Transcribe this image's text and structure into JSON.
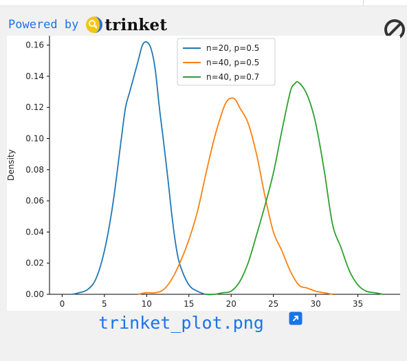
{
  "header": {
    "powered_label": "Powered by",
    "brand": "trinket"
  },
  "colors": {
    "link": "#1a73e8",
    "series_blue": "#1f77b4",
    "series_orange": "#ff7f0e",
    "series_green": "#2ca02c"
  },
  "caption": {
    "filename": "trinket_plot.png"
  },
  "chart_data": {
    "type": "line",
    "title": "",
    "xlabel": "",
    "ylabel": "Density",
    "xlim": [
      -1.5,
      40
    ],
    "ylim": [
      0,
      0.166
    ],
    "xticks": [
      0,
      5,
      10,
      15,
      20,
      25,
      30,
      35
    ],
    "yticks": [
      0.0,
      0.02,
      0.04,
      0.06,
      0.08,
      0.1,
      0.12,
      0.14,
      0.16
    ],
    "ytick_labels": [
      "0.00",
      "0.02",
      "0.04",
      "0.06",
      "0.08",
      "0.10",
      "0.12",
      "0.14",
      "0.16"
    ],
    "legend_position": "top-center",
    "series": [
      {
        "name": "n=20, p=0.5",
        "color": "#1f77b4",
        "x": [
          1.2,
          2,
          3,
          4,
          5,
          6,
          7,
          7.5,
          8,
          8.5,
          9,
          9.5,
          10,
          10.5,
          11,
          11.5,
          12,
          12.5,
          13,
          13.5,
          14,
          15,
          16,
          17,
          18
        ],
        "y": [
          0.0,
          0.001,
          0.003,
          0.01,
          0.028,
          0.058,
          0.1,
          0.12,
          0.13,
          0.14,
          0.15,
          0.16,
          0.162,
          0.158,
          0.145,
          0.12,
          0.098,
          0.075,
          0.05,
          0.03,
          0.018,
          0.006,
          0.002,
          0.0,
          0.0
        ]
      },
      {
        "name": "n=40, p=0.5",
        "color": "#ff7f0e",
        "x": [
          9,
          10,
          11,
          12,
          13,
          14,
          15,
          16,
          17,
          18,
          19,
          19.5,
          20,
          20.5,
          21,
          22,
          23,
          24,
          25,
          26,
          27,
          28,
          29,
          30,
          31,
          32
        ],
        "y": [
          0.0,
          0.001,
          0.001,
          0.003,
          0.01,
          0.021,
          0.035,
          0.053,
          0.077,
          0.1,
          0.118,
          0.124,
          0.126,
          0.125,
          0.12,
          0.11,
          0.09,
          0.063,
          0.04,
          0.028,
          0.015,
          0.006,
          0.004,
          0.002,
          0.001,
          0.0
        ]
      },
      {
        "name": "n=40, p=0.7",
        "color": "#2ca02c",
        "x": [
          17,
          18,
          19,
          20,
          21,
          22,
          23,
          24,
          25,
          26,
          27,
          27.5,
          28,
          29,
          30,
          31,
          32,
          33,
          34,
          35,
          36,
          37,
          38
        ],
        "y": [
          0.0,
          0.0,
          0.001,
          0.002,
          0.008,
          0.02,
          0.038,
          0.057,
          0.078,
          0.105,
          0.13,
          0.135,
          0.136,
          0.128,
          0.11,
          0.08,
          0.045,
          0.03,
          0.015,
          0.006,
          0.002,
          0.001,
          0.0
        ]
      }
    ]
  }
}
